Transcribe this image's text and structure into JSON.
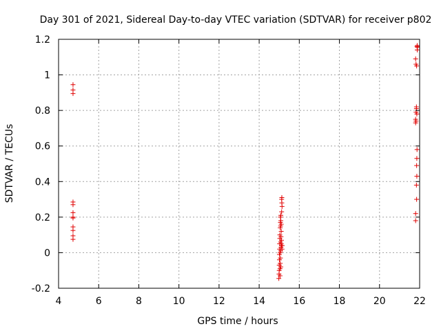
{
  "chart_data": {
    "type": "scatter",
    "title": "Day 301 of 2021, Sidereal Day-to-day VTEC variation (SDTVAR) for receiver p802",
    "xlabel": "GPS time / hours",
    "ylabel": "SDTVAR / TECUs",
    "xlim": [
      4,
      22
    ],
    "ylim": [
      -0.2,
      1.2
    ],
    "xticks": [
      4,
      6,
      8,
      10,
      12,
      14,
      16,
      18,
      20,
      22
    ],
    "xtick_labels": [
      "4",
      "6",
      "8",
      "10",
      "12",
      "14",
      "16",
      "18",
      "20",
      "22"
    ],
    "yticks": [
      -0.2,
      0,
      0.2,
      0.4,
      0.6,
      0.8,
      1,
      1.2
    ],
    "ytick_labels": [
      "-0.2",
      "0",
      "0.2",
      "0.4",
      "0.6",
      "0.8",
      "1",
      "1.2"
    ],
    "grid": true,
    "marker": "+",
    "marker_color": "#e00000",
    "series": [
      {
        "name": "SDTVAR",
        "x": [
          4.72,
          4.72,
          4.72,
          4.72,
          4.72,
          4.72,
          4.72,
          4.72,
          4.72,
          4.72,
          4.72,
          4.72,
          14.98,
          14.99,
          15.0,
          15.0,
          15.01,
          15.01,
          15.02,
          15.02,
          15.03,
          15.03,
          15.04,
          15.04,
          15.05,
          15.05,
          15.05,
          15.06,
          15.06,
          15.06,
          15.07,
          15.07,
          15.07,
          15.08,
          15.08,
          15.08,
          15.09,
          15.09,
          15.1,
          15.1,
          15.1,
          15.11,
          15.11,
          15.12,
          15.12,
          15.13,
          15.13,
          15.14,
          15.14,
          15.15,
          21.8,
          21.8,
          21.8,
          21.8,
          21.8,
          21.82,
          21.82,
          21.82,
          21.84,
          21.84,
          21.84,
          21.85,
          21.85,
          21.85,
          21.86,
          21.86,
          21.86,
          21.87,
          21.87,
          21.88,
          21.88,
          21.89
        ],
        "y": [
          0.945,
          0.915,
          0.895,
          0.285,
          0.27,
          0.225,
          0.2,
          0.145,
          0.125,
          0.095,
          0.075,
          0.195,
          -0.145,
          -0.12,
          -0.1,
          -0.07,
          -0.04,
          -0.01,
          0.02,
          0.05,
          0.08,
          0.1,
          -0.13,
          -0.09,
          -0.06,
          0.0,
          0.14,
          0.17,
          0.2,
          -0.03,
          0.01,
          0.06,
          0.15,
          0.18,
          0.21,
          -0.08,
          0.03,
          0.09,
          0.12,
          0.16,
          0.05,
          0.07,
          0.04,
          0.23,
          0.3,
          0.31,
          0.28,
          0.26,
          0.02,
          0.04,
          0.18,
          0.22,
          0.73,
          0.75,
          1.09,
          0.74,
          0.79,
          1.06,
          0.81,
          0.82,
          0.38,
          0.49,
          0.3,
          1.05,
          0.43,
          0.53,
          0.78,
          0.58,
          1.16,
          1.165,
          1.14,
          1.155
        ]
      }
    ]
  }
}
